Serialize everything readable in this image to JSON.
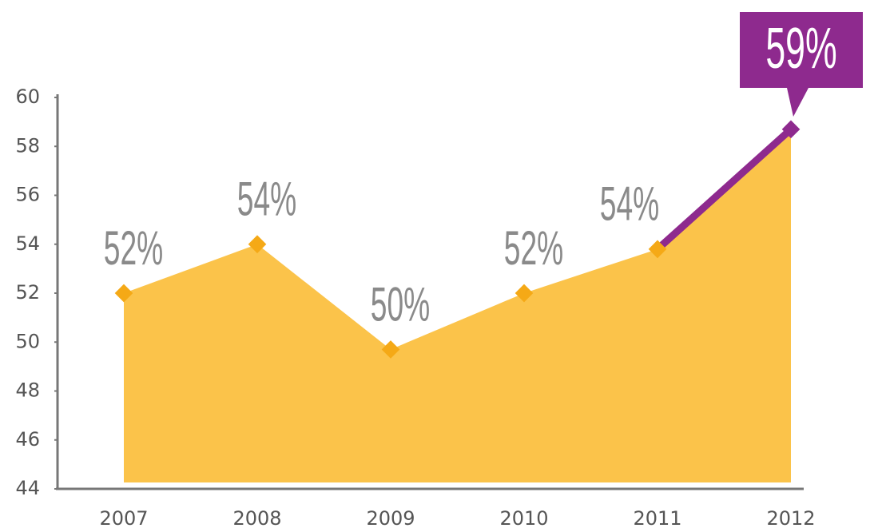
{
  "chart_data": {
    "type": "area",
    "categories": [
      "2007",
      "2008",
      "2009",
      "2010",
      "2011",
      "2012"
    ],
    "values": [
      52,
      54,
      49.7,
      52,
      53.8,
      58.7
    ],
    "value_labels": [
      "52%",
      "54%",
      "50%",
      "52%",
      "54%",
      "59%"
    ],
    "color": "#fbc34a",
    "marker_color": "#f5a916",
    "highlight_color": "#8e2a8e",
    "ylim": [
      44,
      60
    ],
    "yticks": [
      44,
      46,
      48,
      50,
      52,
      54,
      56,
      58,
      60
    ],
    "grid": false
  }
}
